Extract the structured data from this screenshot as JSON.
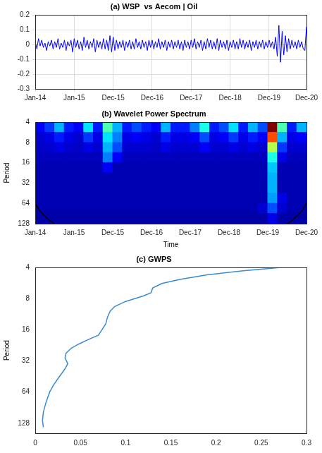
{
  "chart_data": [
    {
      "type": "line",
      "title": "(a) WSP  vs Aecom | Oil",
      "categories": [
        "Jan-14",
        null,
        null,
        null,
        null,
        null,
        null,
        null,
        null,
        null,
        null,
        null,
        null,
        null,
        null,
        null,
        null,
        null,
        null,
        null,
        null,
        null,
        null,
        null,
        "Jan-15",
        null,
        null,
        null,
        null,
        null,
        null,
        null,
        null,
        null,
        null,
        null,
        null,
        null,
        null,
        null,
        null,
        null,
        null,
        null,
        null,
        null,
        null,
        null,
        "Dec-15",
        null,
        null,
        null,
        null,
        null,
        null,
        null,
        null,
        null,
        null,
        null,
        null,
        null,
        null,
        null,
        null,
        null,
        null,
        null,
        null,
        null,
        null,
        null,
        "Dec-16",
        null,
        null,
        null,
        null,
        null,
        null,
        null,
        null,
        null,
        null,
        null,
        null,
        null,
        null,
        null,
        null,
        null,
        null,
        null,
        null,
        null,
        null,
        null,
        "Dec-17",
        null,
        null,
        null,
        null,
        null,
        null,
        null,
        null,
        null,
        null,
        null,
        null,
        null,
        null,
        null,
        null,
        null,
        null,
        null,
        null,
        null,
        null,
        null,
        "Dec-18",
        null,
        null,
        null,
        null,
        null,
        null,
        null,
        null,
        null,
        null,
        null,
        null,
        null,
        null,
        null,
        null,
        null,
        null,
        null,
        null,
        null,
        null,
        null,
        "Dec-19",
        null,
        null,
        null,
        null,
        null,
        null,
        null,
        null,
        null,
        null,
        null,
        null,
        null,
        null,
        null,
        null,
        null,
        null,
        null,
        null,
        null,
        null,
        "Dec-20"
      ],
      "values": [
        0.02,
        -0.03,
        0.04,
        -0.01,
        0.03,
        -0.02,
        0.01,
        -0.04,
        0.02,
        -0.01,
        0.03,
        -0.03,
        0.02,
        -0.02,
        0.04,
        -0.03,
        0.01,
        -0.02,
        0.03,
        -0.04,
        0.02,
        -0.01,
        0.03,
        -0.05,
        0.04,
        -0.02,
        0.03,
        -0.03,
        0.02,
        -0.04,
        0.05,
        -0.02,
        0.03,
        -0.03,
        0.02,
        -0.02,
        0.04,
        -0.05,
        0.03,
        -0.02,
        0.02,
        -0.03,
        0.04,
        -0.03,
        0.03,
        -0.04,
        0.06,
        -0.05,
        0.05,
        -0.04,
        0.03,
        -0.03,
        0.02,
        -0.02,
        0.03,
        -0.04,
        0.02,
        -0.02,
        0.03,
        -0.03,
        0.02,
        -0.03,
        0.04,
        -0.02,
        0.02,
        -0.03,
        0.03,
        -0.02,
        0.02,
        -0.04,
        0.03,
        -0.02,
        0.03,
        -0.03,
        0.02,
        -0.02,
        0.04,
        -0.03,
        0.02,
        -0.02,
        0.03,
        -0.04,
        0.02,
        -0.02,
        0.03,
        -0.03,
        0.02,
        -0.02,
        0.03,
        -0.03,
        0.02,
        -0.04,
        0.03,
        -0.02,
        0.02,
        -0.03,
        0.03,
        -0.02,
        0.04,
        -0.03,
        0.02,
        -0.02,
        0.03,
        -0.04,
        0.02,
        -0.03,
        0.04,
        -0.02,
        0.03,
        -0.03,
        0.02,
        -0.03,
        0.04,
        -0.04,
        0.03,
        -0.02,
        0.02,
        -0.03,
        0.03,
        -0.04,
        0.02,
        -0.02,
        0.03,
        -0.03,
        0.02,
        -0.03,
        0.04,
        -0.02,
        0.03,
        -0.03,
        0.02,
        -0.02,
        0.03,
        -0.04,
        0.02,
        -0.02,
        0.03,
        -0.03,
        0.02,
        -0.02,
        0.03,
        -0.03,
        0.02,
        -0.02,
        0.03,
        -0.02,
        0.02,
        -0.03,
        0.05,
        -0.08,
        0.13,
        -0.12,
        0.09,
        -0.07,
        0.06,
        -0.05,
        0.04,
        -0.03,
        0.03,
        -0.02,
        0.02,
        -0.03,
        0.03,
        -0.02,
        0.02,
        -0.03,
        -0.04,
        0.12
      ],
      "color": "#0000ff",
      "ylim": [
        -0.3,
        0.2
      ],
      "yticks": [
        -0.3,
        -0.2,
        -0.1,
        0,
        0.1,
        0.2
      ],
      "grid": true
    },
    {
      "type": "heatmap",
      "title": "(b) Wavelet Power Spectrum",
      "x_label": "Time",
      "y_label": "Period",
      "bins": [
        "Jan-14",
        null,
        null,
        null,
        "Jan-15",
        null,
        null,
        null,
        "Dec-15",
        null,
        null,
        null,
        "Dec-16",
        null,
        null,
        null,
        "Dec-17",
        null,
        null,
        null,
        "Dec-18",
        null,
        null,
        null,
        "Dec-19",
        null,
        null,
        null,
        "Dec-20"
      ],
      "period_edges": [
        4,
        5.66,
        8,
        11.31,
        16,
        22.63,
        32,
        45.25,
        64,
        90.51,
        128
      ],
      "cells": [
        [
          0.12,
          0.18,
          0.3,
          0.15,
          0.12,
          0.35,
          0.15,
          0.45,
          0.3,
          0.15,
          0.2,
          0.15,
          0.12,
          0.3,
          0.15,
          0.15,
          0.25,
          0.4,
          0.15,
          0.2,
          0.35,
          0.15,
          0.3,
          0.2,
          1,
          0.45,
          0.15,
          0.3
        ],
        [
          0.08,
          0.1,
          0.15,
          0.1,
          0.08,
          0.18,
          0.1,
          0.35,
          0.25,
          0.1,
          0.12,
          0.1,
          0.08,
          0.15,
          0.1,
          0.1,
          0.12,
          0.2,
          0.1,
          0.12,
          0.18,
          0.1,
          0.15,
          0.12,
          0.8,
          0.3,
          0.1,
          0.12
        ],
        [
          0.07,
          0.08,
          0.1,
          0.08,
          0.07,
          0.1,
          0.08,
          0.3,
          0.2,
          0.08,
          0.08,
          0.08,
          0.07,
          0.1,
          0.08,
          0.08,
          0.08,
          0.12,
          0.08,
          0.08,
          0.1,
          0.08,
          0.1,
          0.08,
          0.55,
          0.18,
          0.08,
          0.08
        ],
        [
          0.06,
          0.06,
          0.06,
          0.06,
          0.06,
          0.06,
          0.06,
          0.25,
          0.12,
          0.06,
          0.06,
          0.06,
          0.06,
          0.06,
          0.06,
          0.06,
          0.06,
          0.06,
          0.06,
          0.06,
          0.06,
          0.06,
          0.06,
          0.06,
          0.4,
          0.1,
          0.06,
          0.06
        ],
        [
          0.05,
          0.05,
          0.05,
          0.05,
          0.05,
          0.05,
          0.05,
          0.12,
          0.05,
          0.05,
          0.05,
          0.05,
          0.05,
          0.05,
          0.05,
          0.05,
          0.05,
          0.05,
          0.05,
          0.05,
          0.05,
          0.05,
          0.05,
          0.05,
          0.32,
          0.05,
          0.05,
          0.05
        ],
        [
          0.05,
          0.05,
          0.05,
          0.05,
          0.05,
          0.05,
          0.05,
          0.05,
          0.05,
          0.05,
          0.05,
          0.05,
          0.05,
          0.05,
          0.05,
          0.05,
          0.05,
          0.05,
          0.05,
          0.05,
          0.05,
          0.05,
          0.05,
          0.05,
          0.3,
          0.05,
          0.05,
          0.05
        ],
        [
          0.05,
          0.05,
          0.05,
          0.05,
          0.05,
          0.05,
          0.05,
          0.05,
          0.05,
          0.05,
          0.05,
          0.05,
          0.05,
          0.05,
          0.05,
          0.05,
          0.05,
          0.05,
          0.05,
          0.05,
          0.05,
          0.05,
          0.05,
          0.05,
          0.3,
          0.05,
          0.05,
          0.05
        ],
        [
          0.05,
          0.05,
          0.05,
          0.05,
          0.05,
          0.05,
          0.05,
          0.05,
          0.05,
          0.05,
          0.05,
          0.05,
          0.05,
          0.05,
          0.05,
          0.05,
          0.05,
          0.05,
          0.05,
          0.05,
          0.05,
          0.05,
          0.05,
          0.05,
          0.28,
          0.1,
          0.05,
          0.05
        ],
        [
          0.05,
          0.05,
          0.05,
          0.05,
          0.05,
          0.05,
          0.05,
          0.05,
          0.05,
          0.05,
          0.05,
          0.05,
          0.05,
          0.05,
          0.05,
          0.05,
          0.05,
          0.05,
          0.05,
          0.05,
          0.05,
          0.05,
          0.05,
          0.08,
          0.2,
          0.08,
          0.05,
          0.05
        ],
        [
          0.04,
          0.04,
          0.04,
          0.04,
          0.04,
          0.04,
          0.04,
          0.04,
          0.04,
          0.04,
          0.04,
          0.04,
          0.04,
          0.04,
          0.04,
          0.04,
          0.04,
          0.04,
          0.04,
          0.04,
          0.04,
          0.04,
          0.04,
          0.04,
          0.1,
          0.04,
          0.04,
          0.04
        ]
      ],
      "zlim": [
        0,
        1
      ],
      "coi": [
        {
          "x": [
            0,
            0.4,
            0.9,
            1.5,
            2
          ],
          "values": [
            64,
            80,
            96,
            115,
            128
          ]
        },
        {
          "x": [
            26,
            26.5,
            27.1,
            27.6,
            28
          ],
          "values": [
            128,
            115,
            96,
            80,
            64
          ]
        }
      ],
      "ylim": [
        4,
        128
      ],
      "yticks": [
        4,
        8,
        16,
        32,
        64,
        128
      ],
      "log": "y"
    },
    {
      "type": "line",
      "title": "(c) GWPS",
      "y_label": "Period",
      "x": [
        0.27,
        0.23,
        0.19,
        0.16,
        0.14,
        0.13,
        0.128,
        0.12,
        0.1,
        0.088,
        0.083,
        0.08,
        0.078,
        0.07,
        0.058,
        0.048,
        0.04,
        0.034,
        0.033,
        0.036,
        0.033,
        0.027,
        0.02,
        0.016,
        0.012,
        0.009,
        0.008,
        0.009
      ],
      "values": [
        4,
        4.3,
        4.7,
        5.2,
        5.7,
        6.3,
        7,
        7.5,
        8.5,
        9.5,
        10.5,
        12,
        14,
        18,
        20,
        22,
        24,
        27,
        30,
        34,
        38,
        45,
        55,
        64,
        80,
        100,
        120,
        140
      ],
      "color": "#3a8bd0",
      "xlim": [
        0,
        0.3
      ],
      "xticks": [
        0,
        0.05,
        0.1,
        0.15,
        0.2,
        0.25,
        0.3
      ],
      "ylim": [
        4,
        160
      ],
      "yticks": [
        4,
        8,
        16,
        32,
        64,
        128
      ],
      "log": "y"
    }
  ]
}
